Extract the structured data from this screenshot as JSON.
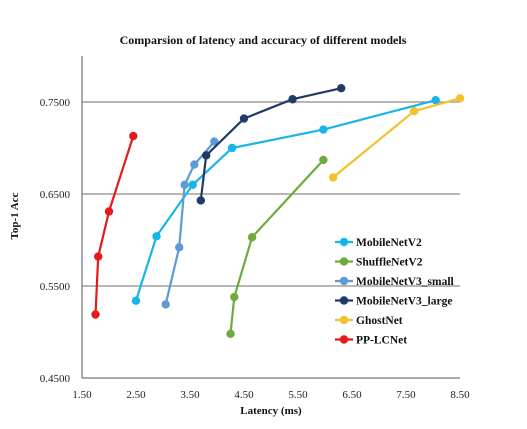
{
  "chart_data": {
    "type": "line",
    "title": "Comparsion of latency and accuracy of different models",
    "xlabel": "Latency (ms)",
    "ylabel": "Top-1 Acc",
    "xlim": [
      1.5,
      8.5
    ],
    "ylim": [
      0.45,
      0.8
    ],
    "x_ticks": [
      1.5,
      2.5,
      3.5,
      4.5,
      5.5,
      6.5,
      7.5,
      8.5
    ],
    "x_tick_labels": [
      "1.50",
      "2.50",
      "3.50",
      "4.50",
      "5.50",
      "6.50",
      "7.50",
      "8.50"
    ],
    "y_ticks": [
      0.45,
      0.55,
      0.65,
      0.75
    ],
    "y_tick_labels": [
      "0.4500",
      "0.5500",
      "0.6500",
      "0.7500"
    ],
    "grid": "horizontal",
    "legend_position": "right",
    "series": [
      {
        "name": "MobileNetV2",
        "color": "#17b5e8",
        "points": [
          [
            2.5,
            0.534
          ],
          [
            2.88,
            0.604
          ],
          [
            3.55,
            0.66
          ],
          [
            4.28,
            0.7
          ],
          [
            5.97,
            0.72
          ],
          [
            8.05,
            0.752
          ]
        ]
      },
      {
        "name": "ShuffleNetV2",
        "color": "#6faa3f",
        "points": [
          [
            4.25,
            0.498
          ],
          [
            4.32,
            0.538
          ],
          [
            4.65,
            0.603
          ],
          [
            5.97,
            0.687
          ]
        ]
      },
      {
        "name": "MobileNetV3_small",
        "color": "#5d9bd5",
        "points": [
          [
            3.05,
            0.53
          ],
          [
            3.3,
            0.592
          ],
          [
            3.4,
            0.66
          ],
          [
            3.58,
            0.682
          ],
          [
            3.95,
            0.707
          ]
        ]
      },
      {
        "name": "MobileNetV3_large",
        "color": "#1f3b66",
        "points": [
          [
            3.7,
            0.643
          ],
          [
            3.8,
            0.692
          ],
          [
            4.5,
            0.732
          ],
          [
            5.4,
            0.753
          ],
          [
            6.3,
            0.765
          ]
        ]
      },
      {
        "name": "GhostNet",
        "color": "#f2c12e",
        "points": [
          [
            6.15,
            0.668
          ],
          [
            7.65,
            0.74
          ],
          [
            8.5,
            0.754
          ]
        ]
      },
      {
        "name": "PP-LCNet",
        "color": "#e8191c",
        "points": [
          [
            1.75,
            0.519
          ],
          [
            1.8,
            0.582
          ],
          [
            2.0,
            0.631
          ],
          [
            2.45,
            0.713
          ]
        ]
      }
    ]
  }
}
